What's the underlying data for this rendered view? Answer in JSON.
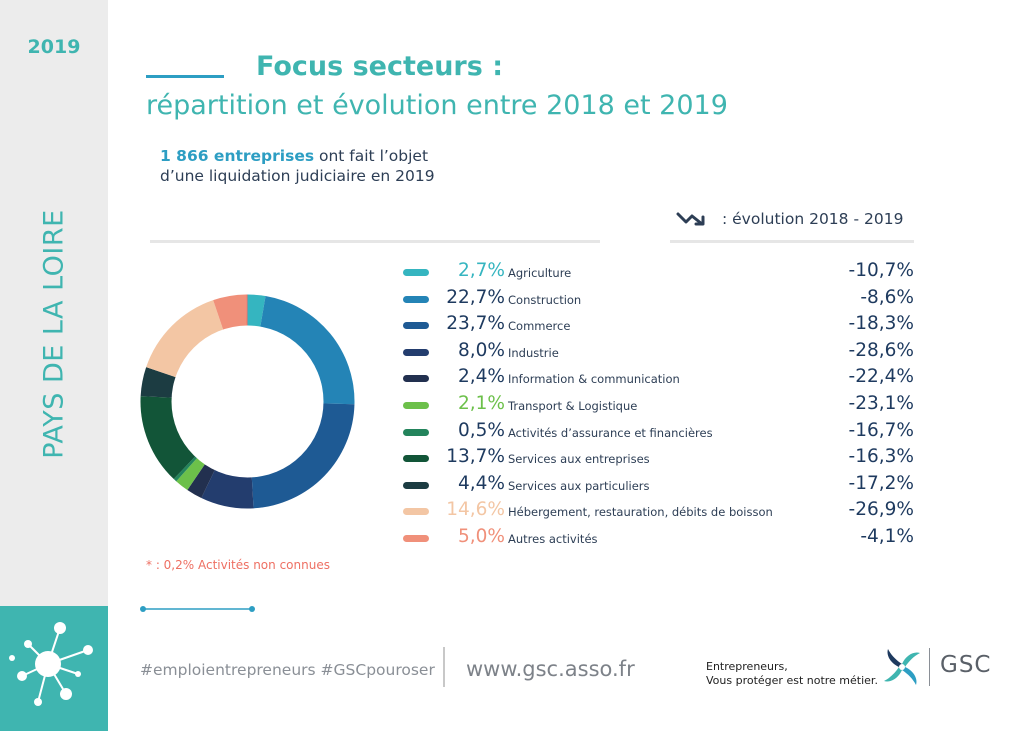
{
  "sidebar": {
    "year": "2019",
    "region": "PAYS DE LA LOIRE"
  },
  "header": {
    "title": "Focus secteurs :",
    "subtitle": "répartition et évolution entre 2018 et 2019"
  },
  "intro": {
    "highlight": "1 866 entreprises",
    "line1_rest": " ont fait l’objet",
    "line2": "d’une liquidation judiciaire en 2019"
  },
  "evolution_header": ": évolution 2018 - 2019",
  "footnote": "* : 0,2% Activités non connues",
  "footer": {
    "hashtags": "#emploientrepreneurs #GSCpouroser",
    "website": "www.gsc.asso.fr",
    "tagline_line1": "Entrepreneurs,",
    "tagline_line2": "Vous protéger est notre métier.",
    "brand": "GSC"
  },
  "colors": {
    "accent": "#3fb5b0",
    "dark_text": "#1e3a5f",
    "unknown_segment": "#ee7063"
  },
  "chart_data": {
    "type": "pie",
    "donut": true,
    "categories": [
      "Agriculture",
      "Construction",
      "Commerce",
      "Industrie",
      "Information & communication",
      "Transport & Logistique",
      "Activités d’assurance et financières",
      "Services aux entreprises",
      "Services aux particuliers",
      "Hébergement, restauration, débits de boisson",
      "Autres activités"
    ],
    "values": [
      2.7,
      22.7,
      23.7,
      8.0,
      2.4,
      2.1,
      0.5,
      13.7,
      4.4,
      14.6,
      5.0
    ],
    "value_labels": [
      "2,7%",
      "22,7%",
      "23,7%",
      "8,0%",
      "2,4%",
      "2,1%",
      "0,5%",
      "13,7%",
      "4,4%",
      "14,6%",
      "5,0%"
    ],
    "evolution_2018_2019": [
      -10.7,
      -8.6,
      -18.3,
      -28.6,
      -22.4,
      -23.1,
      -16.7,
      -16.3,
      -17.2,
      -26.9,
      -4.1
    ],
    "evolution_labels": [
      "-10,7%",
      "-8,6%",
      "-18,3%",
      "-28,6%",
      "-22,4%",
      "-23,1%",
      "-16,7%",
      "-16,3%",
      "-17,2%",
      "-26,9%",
      "-4,1%"
    ],
    "colors": [
      "#35b5c0",
      "#2484b6",
      "#1e5a94",
      "#233d6e",
      "#22304f",
      "#6cc04a",
      "#23845c",
      "#125538",
      "#1c3c42",
      "#f3c6a4",
      "#f0907a"
    ],
    "pct_colors": [
      "#35b5c0",
      "#1e3a5f",
      "#1e3a5f",
      "#1e3a5f",
      "#1e3a5f",
      "#6cc04a",
      "#1e3a5f",
      "#1e3a5f",
      "#1e3a5f",
      "#f3c6a4",
      "#f0907a"
    ],
    "unknown_share": 0.2
  }
}
